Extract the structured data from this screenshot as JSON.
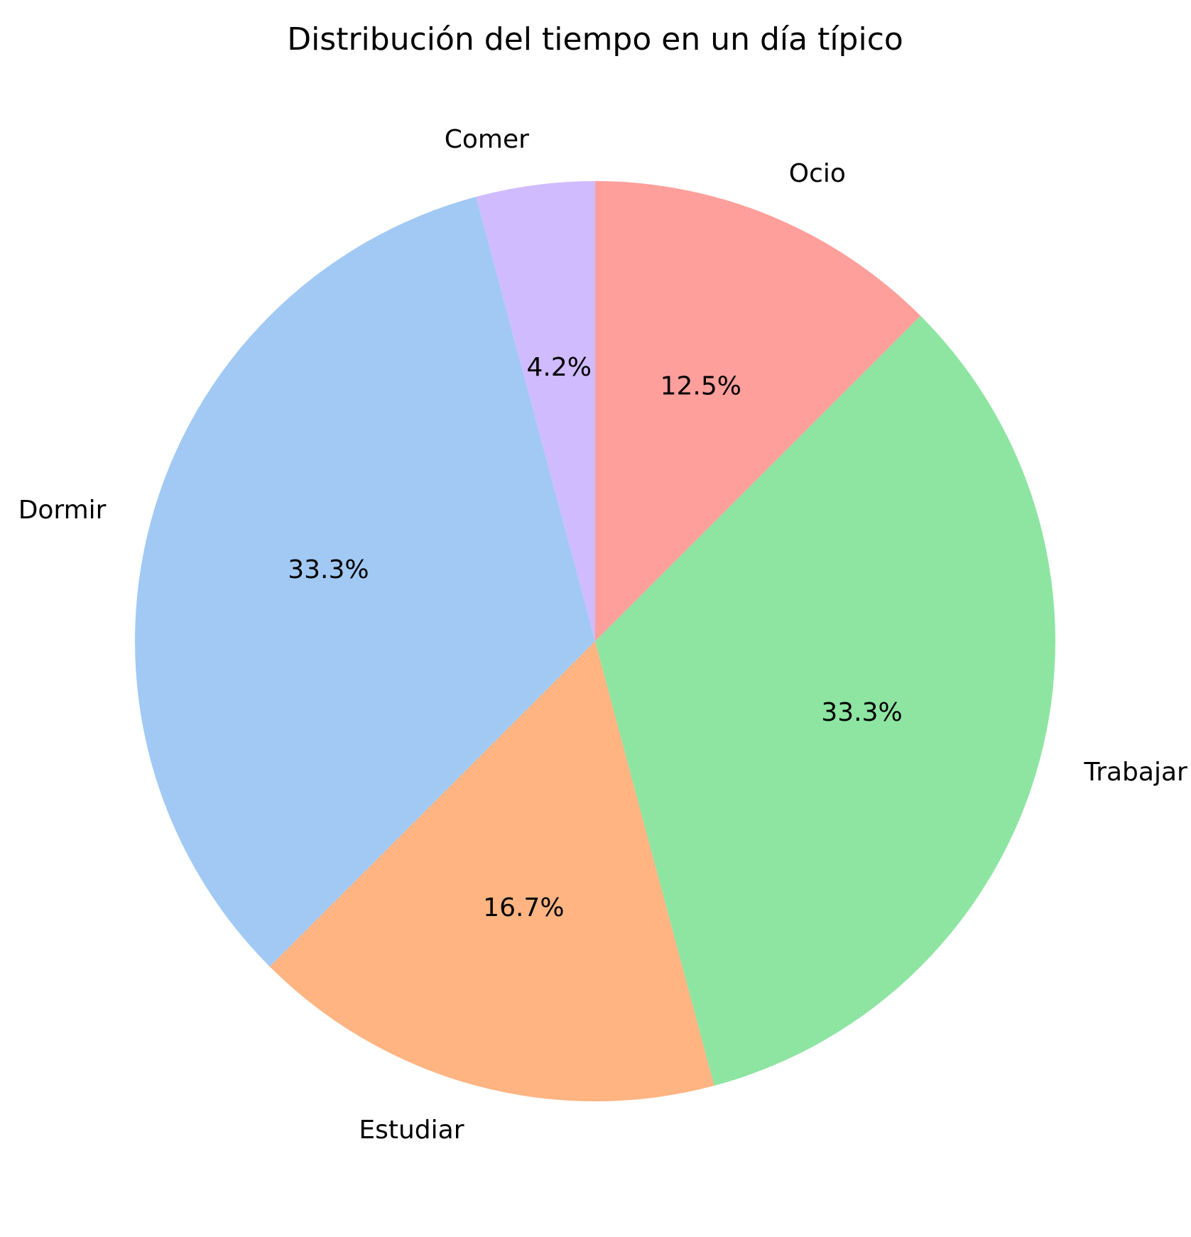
{
  "chart_data": {
    "type": "pie",
    "title": "Distribución del tiempo en un día típico",
    "labels": [
      "Comer",
      "Dormir",
      "Estudiar",
      "Trabajar",
      "Ocio"
    ],
    "values": [
      1,
      8,
      4,
      8,
      3
    ],
    "percent_labels": [
      "4.2%",
      "33.3%",
      "16.7%",
      "33.3%",
      "12.5%"
    ],
    "colors": [
      "#d0bbff",
      "#a1c9f4",
      "#ffb482",
      "#8de5a1",
      "#ff9f9b"
    ],
    "start_angle_deg": 90,
    "direction": "counterclockwise",
    "legend": "none"
  }
}
